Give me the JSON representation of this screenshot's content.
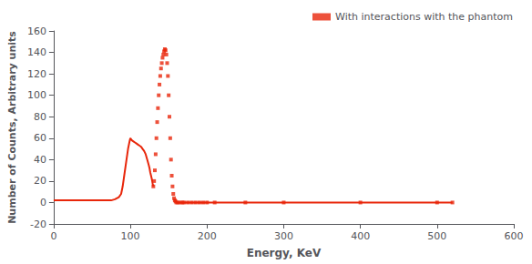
{
  "chart_data": {
    "type": "line",
    "xlabel": "Energy, KeV",
    "ylabel": "Number of Counts, Arbitrary units",
    "xlim": [
      0,
      600
    ],
    "ylim": [
      -20,
      160
    ],
    "xticks": [
      0,
      100,
      200,
      300,
      400,
      500,
      600
    ],
    "yticks": [
      -20,
      0,
      20,
      40,
      60,
      80,
      100,
      120,
      140,
      160
    ],
    "grid": false,
    "legend": "upper right",
    "color": "#e8260a",
    "series": [
      {
        "x": [
          0,
          2,
          4,
          6,
          8,
          10,
          15,
          20,
          30,
          40,
          50,
          60,
          70,
          75,
          80,
          85,
          88,
          90,
          92,
          95,
          97,
          99,
          100,
          102,
          104,
          106,
          108,
          110,
          112,
          114,
          116,
          118,
          120,
          122,
          124,
          125,
          126,
          127,
          128,
          129,
          130
        ],
        "values": [
          2,
          2,
          2,
          2,
          2,
          2,
          2,
          2,
          2,
          2,
          2,
          2,
          2,
          2,
          3,
          5,
          8,
          15,
          25,
          40,
          50,
          57,
          60,
          58,
          57,
          56,
          55,
          54,
          53,
          52,
          50,
          48,
          45,
          40,
          35,
          32,
          28,
          25,
          22,
          18,
          15
        ],
        "line_style": "solid",
        "marker": "none"
      },
      {
        "name": "With interactions with the phantom",
        "x": [
          130,
          131,
          132,
          133,
          134,
          135,
          136,
          137,
          138,
          139,
          140,
          141,
          142,
          143,
          144,
          145,
          146,
          147,
          148,
          149,
          150,
          151,
          152,
          153,
          154,
          155,
          156,
          157,
          158,
          159,
          160,
          162,
          165,
          168,
          170,
          175,
          180,
          185,
          190,
          195,
          200,
          210,
          250,
          300,
          400,
          500,
          520
        ],
        "values": [
          15,
          20,
          30,
          45,
          60,
          75,
          88,
          100,
          110,
          118,
          125,
          130,
          135,
          138,
          141,
          143,
          142,
          138,
          130,
          118,
          100,
          80,
          60,
          40,
          25,
          15,
          8,
          4,
          2,
          1,
          0,
          0,
          0,
          0,
          0,
          0,
          0,
          0,
          0,
          0,
          0,
          0,
          0,
          0,
          0,
          0,
          0
        ],
        "line_style": "none",
        "marker": "square"
      },
      {
        "x": [
          160,
          520
        ],
        "values": [
          0,
          0
        ],
        "line_style": "solid",
        "marker": "none"
      }
    ]
  }
}
